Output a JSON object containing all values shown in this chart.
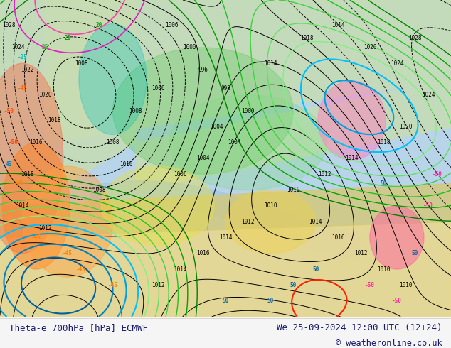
{
  "title_left": "Theta-e 700hPa [hPa] ECMWF",
  "title_right": "We 25-09-2024 12:00 UTC (12+24)",
  "copyright": "© weatheronline.co.uk",
  "bg_color": "#e8f4e8",
  "map_bg": "#d0e8f0",
  "fig_width": 6.34,
  "fig_height": 4.9,
  "dpi": 100,
  "bottom_bar_color": "#f0f0f0",
  "title_color": "#1a1a6e",
  "copyright_color": "#1a1a6e"
}
